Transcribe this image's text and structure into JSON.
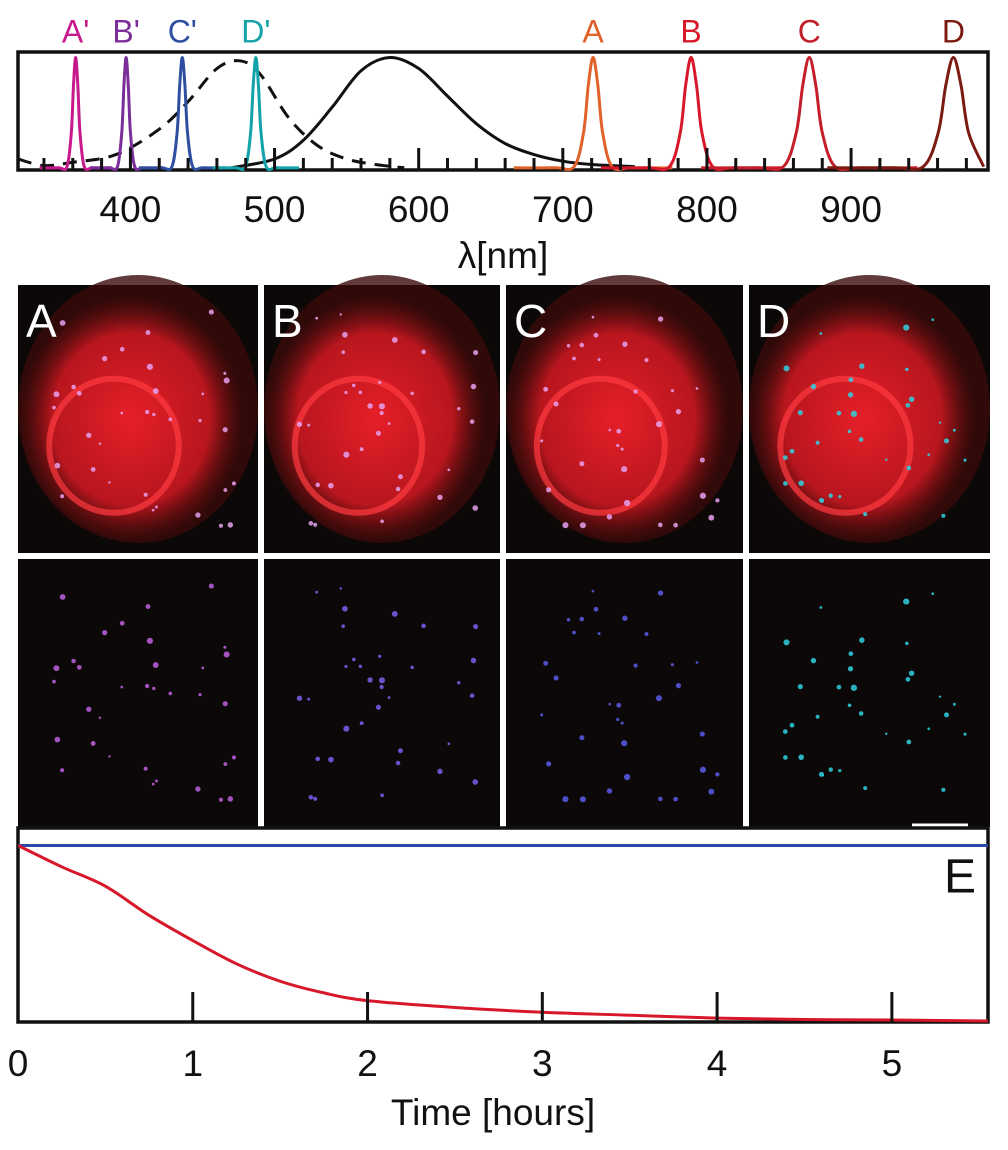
{
  "chart_data": [
    {
      "type": "line",
      "xlabel": "λ[nm]",
      "xlim": [
        322,
        995
      ],
      "ylim": [
        -0.02,
        1.05
      ],
      "xticks": [
        400,
        500,
        600,
        700,
        800,
        900
      ],
      "xminorticks": [
        340,
        360,
        380,
        420,
        440,
        460,
        480,
        520,
        540,
        560,
        580,
        620,
        640,
        660,
        680,
        720,
        740,
        760,
        780,
        820,
        840,
        860,
        880,
        920,
        940,
        960,
        980
      ],
      "series": [
        {
          "style": "dashed",
          "color": "#111111",
          "x": [
            322,
            340,
            360,
            390,
            420,
            440,
            460,
            476,
            490,
            510,
            530,
            550,
            570,
            590
          ],
          "values": [
            0.08,
            0.02,
            0.05,
            0.12,
            0.35,
            0.6,
            0.9,
            0.97,
            0.85,
            0.45,
            0.2,
            0.08,
            0.03,
            0
          ]
        },
        {
          "style": "solid",
          "color": "#111111",
          "x": [
            470,
            500,
            520,
            540,
            560,
            580,
            600,
            620,
            640,
            660,
            680,
            700,
            720,
            750
          ],
          "values": [
            0,
            0.08,
            0.25,
            0.55,
            0.88,
            1.0,
            0.9,
            0.65,
            0.4,
            0.22,
            0.12,
            0.06,
            0.03,
            0.01
          ]
        },
        {
          "name": "A'",
          "color": "#c8198c",
          "x": [
            337,
            350,
            356,
            359,
            360.5,
            362,
            363.5,
            365,
            368,
            374,
            387
          ],
          "values": [
            0,
            0,
            0.01,
            0.32,
            0.75,
            1,
            0.75,
            0.32,
            0.01,
            0,
            0
          ]
        },
        {
          "name": "B'",
          "color": "#7b2d9a",
          "x": [
            372,
            385,
            391,
            394,
            395.5,
            397,
            398.5,
            400,
            403,
            409,
            422
          ],
          "values": [
            0,
            0,
            0.01,
            0.32,
            0.75,
            1,
            0.75,
            0.32,
            0.01,
            0,
            0
          ]
        },
        {
          "name": "C'",
          "color": "#2e4fa0",
          "x": [
            406,
            421.6,
            428.8,
            432.4,
            434.2,
            436,
            437.8,
            439.6,
            443.2,
            450.4,
            466
          ],
          "values": [
            0,
            0,
            0.01,
            0.32,
            0.75,
            1,
            0.75,
            0.32,
            0.01,
            0,
            0
          ]
        },
        {
          "name": "D'",
          "color": "#14a3a8",
          "x": [
            457,
            472.6,
            479.8,
            483.4,
            485.2,
            487,
            488.8,
            490.6,
            494.2,
            501.4,
            517
          ],
          "values": [
            0,
            0,
            0.01,
            0.32,
            0.75,
            1,
            0.75,
            0.32,
            0.01,
            0,
            0
          ]
        },
        {
          "name": "A",
          "color": "#e0622a",
          "x": [
            666,
            694.6,
            707.8,
            714.4,
            717.7,
            721,
            724.3,
            727.6,
            734.2,
            747.4,
            776
          ],
          "values": [
            0,
            0,
            0.01,
            0.32,
            0.75,
            1,
            0.75,
            0.32,
            0.01,
            0,
            0
          ]
        },
        {
          "name": "B",
          "color": "#d7182a",
          "x": [
            726.5,
            759,
            774,
            781.5,
            785.25,
            789,
            792.75,
            796.5,
            804,
            819,
            851.5
          ],
          "values": [
            0,
            0,
            0.01,
            0.32,
            0.75,
            1,
            0.75,
            0.32,
            0.01,
            0,
            0
          ]
        },
        {
          "name": "C",
          "color": "#c41e2a",
          "x": [
            796,
            835,
            853,
            862,
            866.5,
            871,
            875.5,
            880,
            889,
            907,
            946
          ],
          "values": [
            0,
            0,
            0.01,
            0.32,
            0.75,
            1,
            0.75,
            0.32,
            0.01,
            0,
            0
          ]
        },
        {
          "name": "D",
          "color": "#7a1a10",
          "x": [
            883.5,
            929,
            950,
            960.5,
            965.75,
            971,
            976.25,
            981.5,
            992
          ],
          "values": [
            0,
            0,
            0.01,
            0.32,
            0.75,
            1,
            0.75,
            0.32,
            0.01
          ]
        }
      ]
    },
    {
      "type": "line",
      "xlabel": "Time [hours]",
      "annotation": "E",
      "xlim": [
        0,
        5.55
      ],
      "ylim": [
        0,
        1
      ],
      "xticks": [
        0,
        1,
        2,
        3,
        4,
        5
      ],
      "series": [
        {
          "style": "solid",
          "color": "#2a48a8",
          "x": [
            0,
            1,
            2,
            3,
            4,
            5,
            5.55
          ],
          "values": [
            0.91,
            0.91,
            0.91,
            0.91,
            0.91,
            0.91,
            0.91
          ]
        },
        {
          "style": "solid",
          "color": "#d7182a",
          "x": [
            0,
            0.25,
            0.5,
            0.75,
            1,
            1.25,
            1.5,
            1.75,
            2,
            2.5,
            3,
            3.5,
            4,
            4.5,
            5,
            5.55
          ],
          "values": [
            0.91,
            0.8,
            0.7,
            0.55,
            0.42,
            0.3,
            0.21,
            0.15,
            0.11,
            0.075,
            0.05,
            0.035,
            0.02,
            0.013,
            0.01,
            0.005
          ]
        }
      ]
    }
  ],
  "panels": {
    "labels": [
      "A",
      "B",
      "C",
      "D"
    ]
  }
}
